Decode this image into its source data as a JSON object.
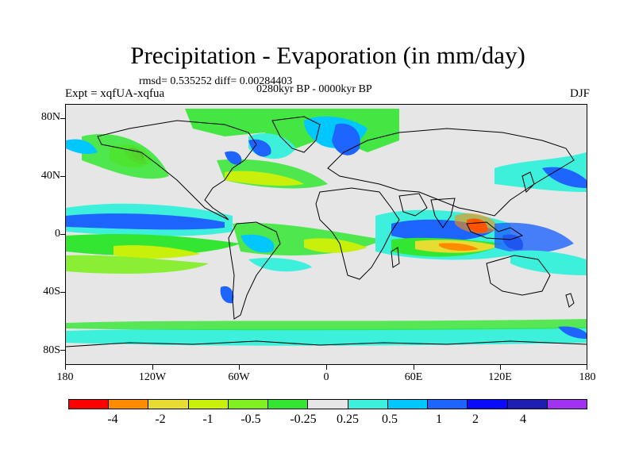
{
  "title": "Precipitation - Evaporation (in mm/day)",
  "stats": "rmsd= 0.535252 diff= 0.00284403",
  "period": "0280kyr BP - 0000kyr BP",
  "expt": "Expt = xqfUA-xqfua",
  "season": "DJF",
  "lat_labels": [
    "80N",
    "40N",
    "0",
    "40S",
    "80S"
  ],
  "lon_labels": [
    "180",
    "120W",
    "60W",
    "0",
    "60E",
    "120E",
    "180"
  ],
  "colorbar": {
    "colors": [
      "#ff0000",
      "#ff8c00",
      "#e6dc32",
      "#c8f00a",
      "#80f020",
      "#32e632",
      "#e6e6e6",
      "#3cf0dc",
      "#00c8ff",
      "#1e64ff",
      "#0a0aff",
      "#1e1eb4",
      "#a032f0"
    ],
    "labels": [
      "-4",
      "-2",
      "-1",
      "-0.5",
      "-0.25",
      "0.25",
      "0.5",
      "1",
      "2",
      "4"
    ]
  },
  "colors": {
    "land_outline": "#000000",
    "background": "#e6e6e6"
  }
}
